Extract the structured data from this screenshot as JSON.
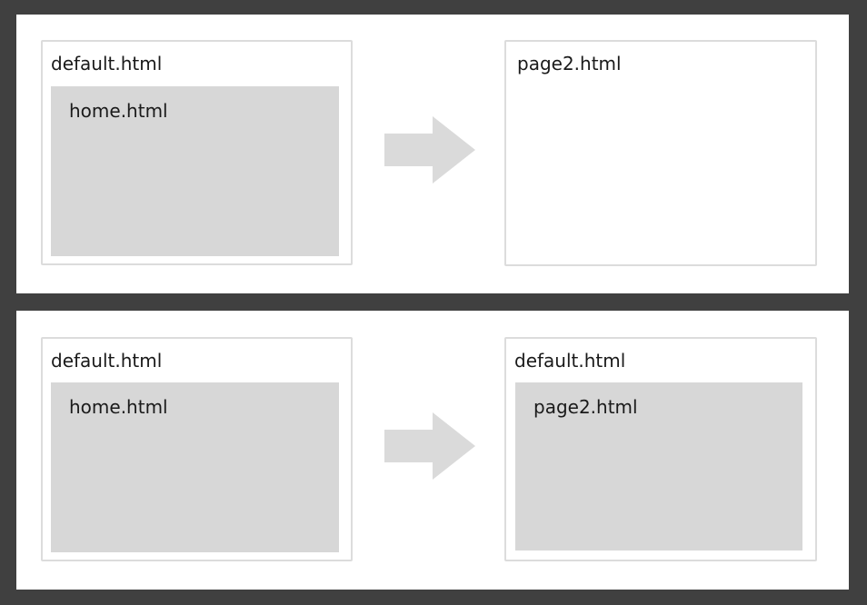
{
  "top_row": {
    "left_frame": {
      "outer_label": "default.html",
      "inner_label": "home.html"
    },
    "right_frame": {
      "outer_label": "page2.html"
    }
  },
  "bottom_row": {
    "left_frame": {
      "outer_label": "default.html",
      "inner_label": "home.html"
    },
    "right_frame": {
      "outer_label": "default.html",
      "inner_label": "page2.html"
    }
  },
  "colors": {
    "background": "#404040",
    "panel": "#ffffff",
    "frame_border": "#dcdcdc",
    "inner_fill": "#d7d7d7",
    "arrow": "#dadada"
  },
  "icons": [
    "right-arrow-icon"
  ]
}
